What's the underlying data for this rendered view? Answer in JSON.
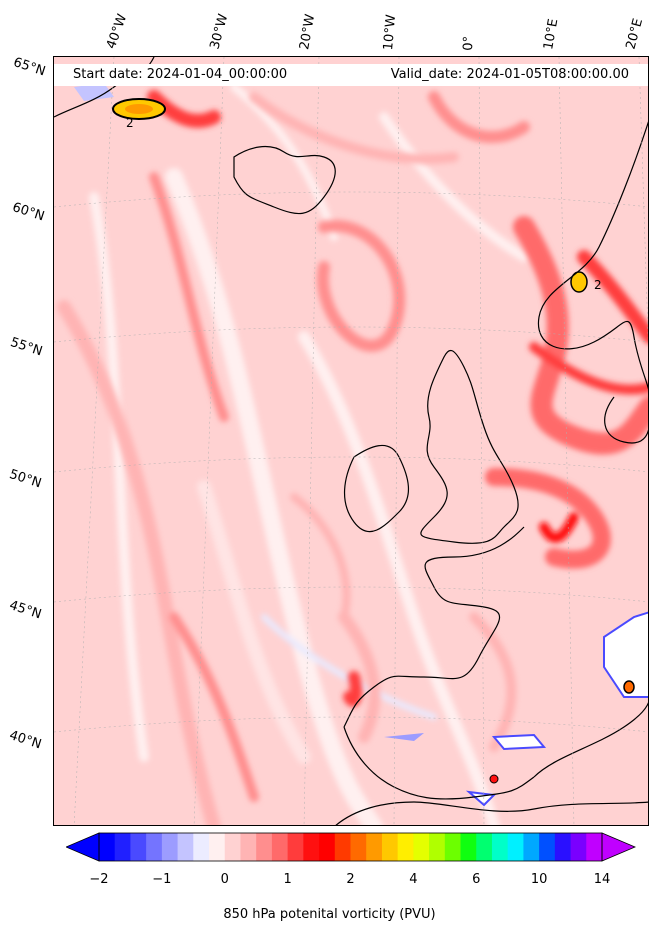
{
  "header": {
    "start_date": "Start date: 2024-01-04_00:00:00",
    "valid_date": "Valid_date: 2024-01-05T08:00:00.00"
  },
  "graticule": {
    "lon_labels": [
      "40°W",
      "30°W",
      "20°W",
      "10°W",
      "0°",
      "10°E",
      "20°E"
    ],
    "lat_labels": [
      "65°N",
      "60°N",
      "55°N",
      "50°N",
      "45°N",
      "40°N"
    ]
  },
  "contour_labels": [
    "2",
    "2"
  ],
  "colorbar": {
    "label": "850 hPa potenital vorticity (PVU)",
    "ticks": [
      "−2",
      "−1",
      "0",
      "1",
      "2",
      "4",
      "6",
      "10",
      "14"
    ],
    "colors": [
      "#0000ff",
      "#2020ff",
      "#4a4aff",
      "#7474ff",
      "#9c9cff",
      "#c4c4ff",
      "#ececff",
      "#fff0f0",
      "#ffd2d2",
      "#ffb4b4",
      "#ff8e8e",
      "#ff6a6a",
      "#ff3c3c",
      "#ff1010",
      "#ff0000",
      "#ff3a00",
      "#ff6a00",
      "#ff9a00",
      "#ffc800",
      "#ffee00",
      "#e4ff00",
      "#b0ff00",
      "#6cff00",
      "#10ff10",
      "#00ff70",
      "#00ffc8",
      "#00f0ff",
      "#00a8ff",
      "#0050ff",
      "#2a10ff",
      "#7a00ff",
      "#c000ff"
    ],
    "extend_min_color": "#0000ff",
    "extend_max_color": "#c000ff"
  },
  "map": {
    "background_color": "#ffd2d2",
    "land_outline_color": "#000000"
  }
}
